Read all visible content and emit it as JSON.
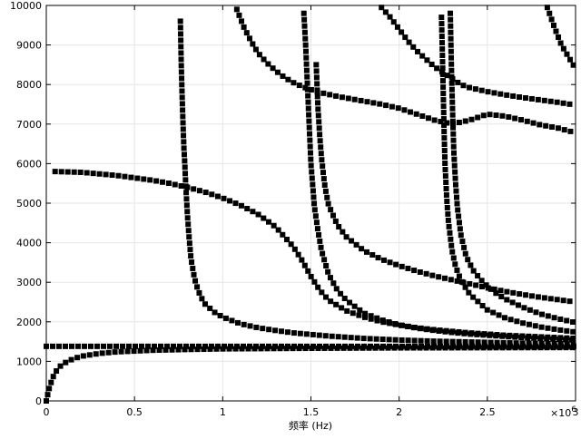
{
  "chart_data": {
    "type": "scatter",
    "title": "",
    "xlabel": "频率 (Hz)",
    "ylabel": "",
    "x_exponent_label": "×10",
    "x_exponent_power": "6",
    "xlim": [
      0,
      3000000
    ],
    "ylim": [
      0,
      10000
    ],
    "x_ticks": [
      0,
      500000,
      1000000,
      1500000,
      2000000,
      2500000,
      3000000
    ],
    "x_tick_labels": [
      "0",
      "0.5",
      "1",
      "1.5",
      "2",
      "2.5",
      "3"
    ],
    "y_ticks": [
      0,
      1000,
      2000,
      3000,
      4000,
      5000,
      6000,
      7000,
      8000,
      9000,
      10000
    ],
    "y_tick_labels": [
      "0",
      "1000",
      "2000",
      "3000",
      "4000",
      "5000",
      "6000",
      "7000",
      "8000",
      "9000",
      "10000"
    ],
    "grid": true,
    "marker": "square",
    "marker_color": "#000000",
    "grid_color": "#e6e6e6",
    "series": [
      {
        "x": [
          0,
          10000,
          20000,
          40000,
          60000,
          80000,
          100000,
          150000,
          200000,
          300000,
          400000,
          600000,
          800000,
          1000000,
          1500000,
          2000000,
          2500000,
          3000000
        ],
        "y": [
          0,
          200,
          380,
          620,
          780,
          880,
          950,
          1060,
          1130,
          1200,
          1240,
          1280,
          1300,
          1315,
          1330,
          1340,
          1345,
          1350
        ]
      },
      {
        "x": [
          0,
          250000,
          500000,
          750000,
          1000000,
          1250000,
          1500000,
          1750000,
          2000000,
          2250000,
          2500000,
          2750000,
          3000000
        ],
        "y": [
          1380,
          1380,
          1380,
          1380,
          1380,
          1380,
          1380,
          1380,
          1380,
          1380,
          1380,
          1380,
          1380
        ]
      },
      {
        "x": [
          50000,
          200000,
          400000,
          600000,
          700000,
          800000,
          900000,
          1000000,
          1100000,
          1200000,
          1300000,
          1400000,
          1450000,
          1500000,
          1550000,
          1600000,
          1700000,
          1800000,
          1900000,
          2000000,
          2100000,
          2200000,
          2300000,
          2400000,
          2500000,
          2600000,
          2700000,
          2800000,
          2900000,
          3000000
        ],
        "y": [
          5800,
          5780,
          5700,
          5580,
          5500,
          5400,
          5280,
          5130,
          4950,
          4720,
          4400,
          3900,
          3550,
          3150,
          2800,
          2550,
          2280,
          2120,
          2000,
          1920,
          1850,
          1800,
          1760,
          1720,
          1690,
          1660,
          1640,
          1620,
          1600,
          1580
        ]
      },
      {
        "x": [
          760000,
          765000,
          770000,
          775000,
          780000,
          785000,
          790000,
          800000,
          810000,
          820000,
          840000,
          860000,
          880000,
          900000,
          950000,
          1000000,
          1100000,
          1200000,
          1300000,
          1400000,
          1500000,
          1600000,
          1800000,
          2000000,
          2200000,
          2400000,
          2600000,
          2800000,
          3000000
        ],
        "y": [
          9600,
          8500,
          7700,
          7000,
          6400,
          6000,
          5500,
          4700,
          4100,
          3600,
          3100,
          2800,
          2600,
          2450,
          2250,
          2120,
          1950,
          1850,
          1780,
          1720,
          1680,
          1640,
          1580,
          1540,
          1510,
          1490,
          1470,
          1450,
          1440
        ]
      },
      {
        "x": [
          1080000,
          1120000,
          1160000,
          1200000,
          1250000,
          1300000,
          1350000,
          1400000,
          1450000,
          1500000,
          1550000,
          1600000,
          1650000,
          1700000,
          1800000,
          1900000,
          2000000,
          2100000,
          2200000,
          2300000,
          2400000,
          2500000,
          2600000,
          2700000,
          2800000,
          2900000,
          3000000
        ],
        "y": [
          9900,
          9450,
          9100,
          8800,
          8550,
          8350,
          8180,
          8050,
          7950,
          7870,
          7800,
          7750,
          7700,
          7660,
          7580,
          7500,
          7400,
          7250,
          7100,
          7000,
          7100,
          7250,
          7200,
          7100,
          6980,
          6900,
          6780
        ]
      },
      {
        "x": [
          1460000,
          1470000,
          1480000,
          1490000,
          1500000,
          1520000,
          1540000,
          1560000,
          1600000,
          1650000,
          1700000,
          1800000,
          1900000,
          2000000,
          2100000,
          2200000,
          2300000,
          2400000,
          2500000,
          2600000,
          2700000,
          2800000,
          2900000,
          3000000
        ],
        "y": [
          9800,
          9000,
          8000,
          7000,
          6000,
          4900,
          4300,
          3800,
          3200,
          2800,
          2550,
          2220,
          2050,
          1920,
          1840,
          1780,
          1730,
          1690,
          1660,
          1630,
          1600,
          1580,
          1560,
          1540
        ]
      },
      {
        "x": [
          1530000,
          1540000,
          1550000,
          1560000,
          1570000,
          1580000,
          1600000,
          1650000,
          1700000,
          1800000,
          1900000,
          2000000,
          2100000,
          2200000,
          2300000,
          2400000,
          2500000,
          2600000,
          2700000,
          2800000,
          2900000,
          3000000
        ],
        "y": [
          8500,
          7400,
          6700,
          6150,
          5750,
          5400,
          4950,
          4450,
          4150,
          3800,
          3580,
          3420,
          3280,
          3160,
          3060,
          2960,
          2860,
          2770,
          2690,
          2620,
          2560,
          2500
        ]
      },
      {
        "x": [
          1900000,
          1950000,
          2000000,
          2050000,
          2100000,
          2150000,
          2200000,
          2250000,
          2300000,
          2350000,
          2400000,
          2500000,
          2600000,
          2700000,
          2800000,
          2900000,
          3000000
        ],
        "y": [
          9950,
          9700,
          9400,
          9100,
          8850,
          8650,
          8450,
          8300,
          8150,
          8000,
          7920,
          7820,
          7740,
          7670,
          7610,
          7550,
          7480
        ]
      },
      {
        "x": [
          2240000,
          2245000,
          2250000,
          2255000,
          2260000,
          2270000,
          2280000,
          2300000,
          2320000,
          2350000,
          2400000,
          2450000,
          2500000,
          2600000,
          2700000,
          2800000,
          2900000,
          3000000
        ],
        "y": [
          9700,
          8800,
          7800,
          6800,
          6000,
          5100,
          4500,
          3800,
          3400,
          3050,
          2700,
          2500,
          2300,
          2100,
          1970,
          1870,
          1800,
          1740
        ]
      },
      {
        "x": [
          2290000,
          2295000,
          2300000,
          2305000,
          2310000,
          2320000,
          2330000,
          2350000,
          2380000,
          2420000,
          2460000,
          2500000,
          2550000,
          2600000,
          2700000,
          2800000,
          2900000,
          3000000
        ],
        "y": [
          9800,
          8700,
          7800,
          7000,
          6300,
          5500,
          4900,
          4200,
          3650,
          3300,
          3080,
          2900,
          2720,
          2580,
          2370,
          2200,
          2080,
          1980
        ]
      },
      {
        "x": [
          2840000,
          2880000,
          2920000,
          2960000,
          3000000
        ],
        "y": [
          9950,
          9450,
          9000,
          8700,
          8400
        ]
      }
    ]
  }
}
